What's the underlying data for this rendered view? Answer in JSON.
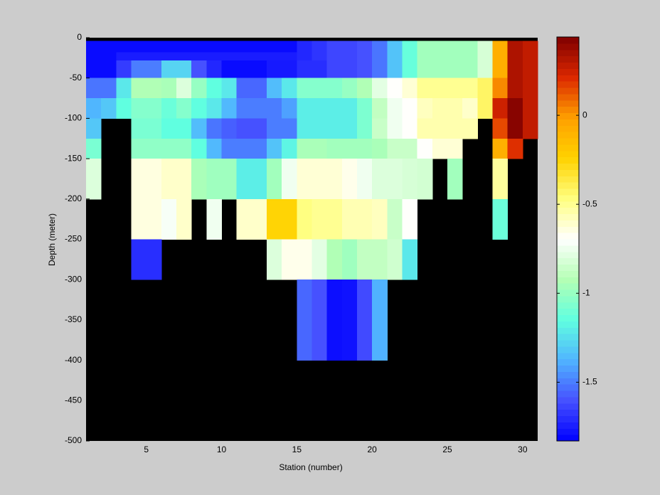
{
  "chart_data": {
    "type": "heatmap",
    "x_label": "Station (number)",
    "y_label": "Depth (meter)",
    "x": [
      1,
      2,
      3,
      4,
      5,
      6,
      7,
      8,
      9,
      10,
      11,
      12,
      13,
      14,
      15,
      16,
      17,
      18,
      19,
      20,
      21,
      22,
      23,
      24,
      25,
      26,
      27,
      28,
      29,
      30,
      31
    ],
    "y": [
      0,
      -4,
      -18,
      -28,
      -50,
      -75,
      -100,
      -125,
      -150,
      -200,
      -250,
      -300,
      -400,
      -500
    ],
    "values": [
      [
        null,
        null,
        null,
        null,
        null,
        null,
        null,
        null,
        null,
        null,
        null,
        null,
        null,
        null,
        null,
        null,
        null,
        null,
        null,
        null,
        null,
        null,
        null,
        null,
        null,
        null,
        null,
        null,
        null,
        null
      ],
      [
        -1.8,
        -1.8,
        -1.8,
        -1.8,
        -1.8,
        -1.8,
        -1.8,
        -1.8,
        -1.8,
        -1.8,
        -1.8,
        -1.8,
        -1.8,
        -1.8,
        -1.72,
        -1.68,
        -1.63,
        -1.63,
        -1.6,
        -1.52,
        -1.33,
        -1.13,
        -0.97,
        -0.97,
        -0.97,
        -0.97,
        -0.82,
        -0.08,
        0.33,
        0.28
      ],
      [
        -1.8,
        -1.8,
        -1.75,
        -1.75,
        -1.75,
        -1.75,
        -1.75,
        -1.75,
        -1.75,
        -1.75,
        -1.75,
        -1.75,
        -1.75,
        -1.75,
        -1.72,
        -1.68,
        -1.63,
        -1.63,
        -1.6,
        -1.52,
        -1.33,
        -1.13,
        -0.97,
        -0.97,
        -0.97,
        -0.97,
        -0.82,
        -0.08,
        0.33,
        0.28
      ],
      [
        -1.8,
        -1.8,
        -1.66,
        -1.5,
        -1.5,
        -1.28,
        -1.28,
        -1.6,
        -1.72,
        -1.8,
        -1.8,
        -1.8,
        -1.76,
        -1.76,
        -1.7,
        -1.7,
        -1.63,
        -1.63,
        -1.6,
        -1.52,
        -1.33,
        -1.13,
        -0.97,
        -0.97,
        -0.97,
        -0.97,
        -0.82,
        -0.08,
        0.33,
        0.28
      ],
      [
        -1.52,
        -1.52,
        -1.22,
        -0.93,
        -0.93,
        -0.95,
        -0.8,
        -1.0,
        -1.15,
        -1.22,
        -1.55,
        -1.55,
        -1.35,
        -1.22,
        -1.05,
        -1.05,
        -1.05,
        -1.0,
        -0.93,
        -0.78,
        -0.69,
        -0.62,
        -0.5,
        -0.5,
        -0.5,
        -0.5,
        -0.42,
        0.03,
        0.33,
        0.28
      ],
      [
        -1.37,
        -1.32,
        -1.15,
        -1.05,
        -1.05,
        -1.12,
        -1.05,
        -1.15,
        -1.22,
        -1.36,
        -1.5,
        -1.5,
        -1.5,
        -1.42,
        -1.2,
        -1.2,
        -1.2,
        -1.2,
        -1.07,
        -0.88,
        -0.74,
        -0.69,
        -0.58,
        -0.55,
        -0.55,
        -0.6,
        -0.42,
        0.25,
        0.42,
        0.28
      ],
      [
        -1.32,
        null,
        null,
        -1.08,
        -1.08,
        -1.15,
        -1.15,
        -1.35,
        -1.52,
        -1.57,
        -1.6,
        -1.6,
        -1.5,
        -1.5,
        -1.2,
        -1.2,
        -1.2,
        -1.2,
        -1.07,
        -0.86,
        -0.74,
        -0.69,
        -0.55,
        -0.55,
        -0.55,
        -0.55,
        null,
        0.15,
        0.42,
        0.28
      ],
      [
        -1.08,
        null,
        null,
        -1.02,
        -1.02,
        -1.02,
        -1.02,
        -1.15,
        -1.36,
        -1.5,
        -1.5,
        -1.5,
        -1.33,
        -1.18,
        -0.95,
        -0.95,
        -0.97,
        -0.97,
        -0.97,
        -0.95,
        -0.86,
        -0.86,
        -0.69,
        -0.62,
        -0.62,
        null,
        null,
        -0.08,
        0.2,
        null
      ],
      [
        -0.8,
        null,
        null,
        -0.64,
        -0.64,
        -0.6,
        -0.6,
        -0.95,
        -0.98,
        -0.98,
        -1.2,
        -1.2,
        -0.97,
        -0.74,
        -0.62,
        -0.62,
        -0.62,
        -0.66,
        -0.74,
        -0.8,
        -0.8,
        -0.82,
        -0.83,
        null,
        -0.97,
        null,
        null,
        -0.52,
        null,
        null
      ],
      [
        null,
        null,
        null,
        -0.64,
        -0.64,
        -0.72,
        -0.6,
        null,
        -0.74,
        null,
        -0.6,
        -0.6,
        -0.25,
        -0.25,
        -0.47,
        -0.5,
        -0.5,
        -0.56,
        -0.56,
        -0.58,
        -0.86,
        -0.69,
        null,
        null,
        null,
        null,
        null,
        -1.12,
        null,
        null
      ],
      [
        null,
        null,
        null,
        -1.7,
        -1.7,
        null,
        null,
        null,
        null,
        null,
        null,
        null,
        -0.8,
        -0.66,
        -0.66,
        -0.78,
        -0.93,
        -0.98,
        -0.88,
        -0.88,
        -0.84,
        -1.22,
        null,
        null,
        null,
        null,
        null,
        null,
        null,
        null
      ],
      [
        null,
        null,
        null,
        null,
        null,
        null,
        null,
        null,
        null,
        null,
        null,
        null,
        null,
        null,
        -1.55,
        -1.6,
        -1.79,
        -1.78,
        -1.62,
        -1.38,
        null,
        null,
        null,
        null,
        null,
        null,
        null,
        null,
        null,
        null
      ],
      [
        null,
        null,
        null,
        null,
        null,
        null,
        null,
        null,
        null,
        null,
        null,
        null,
        null,
        null,
        null,
        null,
        null,
        null,
        null,
        null,
        null,
        null,
        null,
        null,
        null,
        null,
        null,
        null,
        null,
        null
      ]
    ],
    "xlim": [
      1,
      31
    ],
    "xticks": [
      5,
      10,
      15,
      20,
      25,
      30
    ],
    "ylim": [
      -500,
      0
    ],
    "yticks": [
      -500,
      -450,
      -400,
      -350,
      -300,
      -250,
      -200,
      -150,
      -100,
      -50,
      0
    ],
    "clim": [
      -1.83,
      0.44
    ],
    "cticks": [
      -1.5,
      -1,
      -0.5,
      0
    ],
    "colormap": [
      "#0000ff",
      "#4650ff",
      "#50b4ff",
      "#60ffe0",
      "#b4ffb4",
      "#ffffff",
      "#ffff80",
      "#ffd200",
      "#ffa000",
      "#dc2800",
      "#800000"
    ],
    "background": "#000000"
  }
}
